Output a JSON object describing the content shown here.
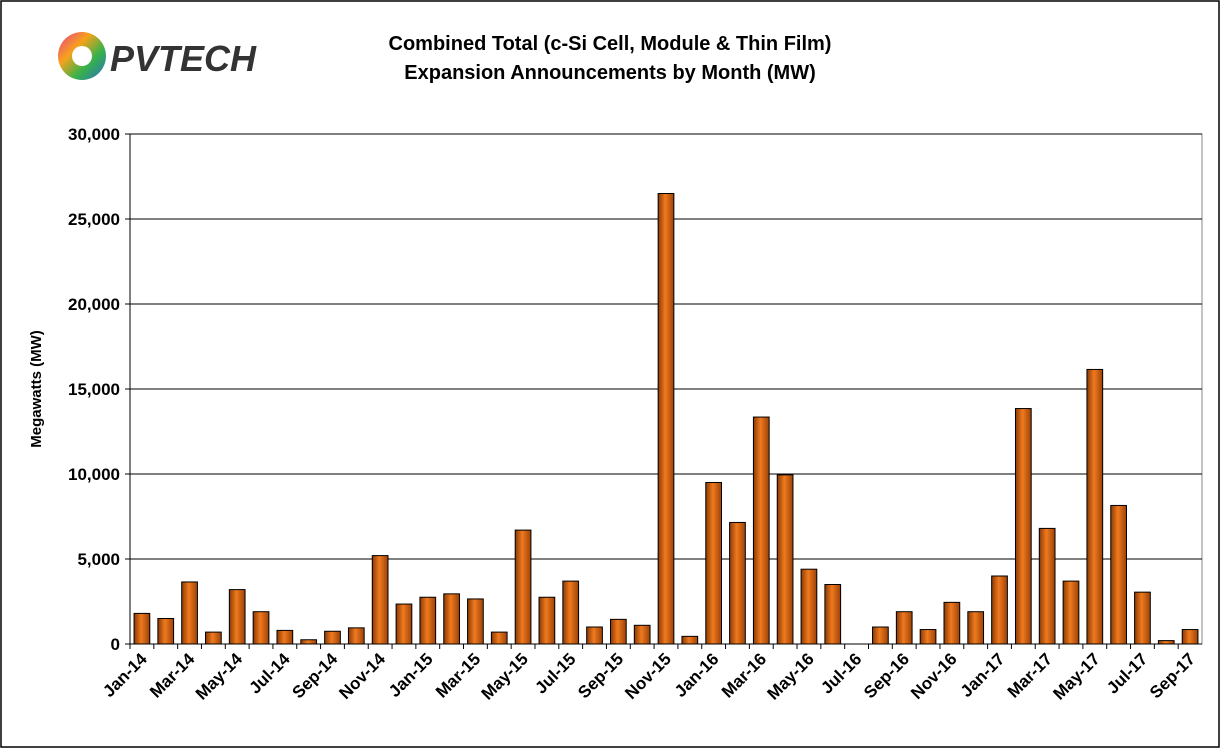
{
  "logo": "PVTECH",
  "chart_data": {
    "type": "bar",
    "title": "Combined Total (c-Si Cell, Module & Thin Film)",
    "subtitle": "Expansion Announcements by Month (MW)",
    "y_label": "Megawatts (MW)",
    "categories": [
      "Jan-14",
      null,
      "Mar-14",
      null,
      "May-14",
      null,
      "Jul-14",
      null,
      "Sep-14",
      null,
      "Nov-14",
      null,
      "Jan-15",
      null,
      "Mar-15",
      null,
      "May-15",
      null,
      "Jul-15",
      null,
      "Sep-15",
      null,
      "Nov-15",
      null,
      "Jan-16",
      null,
      "Mar-16",
      null,
      "May-16",
      null,
      "Jul-16",
      null,
      "Sep-16",
      null,
      "Nov-16",
      null,
      "Jan-17",
      null,
      "Mar-17",
      null,
      "May-17",
      null,
      "Jul-17",
      null,
      "Sep-17"
    ],
    "values": [
      1800,
      1500,
      3650,
      700,
      3200,
      1900,
      800,
      250,
      750,
      950,
      5200,
      2350,
      2750,
      2950,
      2650,
      700,
      6700,
      2750,
      3700,
      1000,
      1450,
      1100,
      26500,
      450,
      9500,
      7150,
      13350,
      9950,
      4400,
      3500,
      0,
      1000,
      1900,
      850,
      2450,
      1900,
      4000,
      13850,
      6800,
      3700,
      16150,
      8150,
      3050,
      200,
      850
    ],
    "color": "#d95f0e",
    "ylim": [
      0,
      30000
    ],
    "yticks": [
      0,
      {
        "value": 5000,
        "label": "5,000"
      },
      {
        "value": 10000,
        "label": "10,000"
      },
      {
        "value": 15000,
        "label": "15,000"
      },
      {
        "value": 20000,
        "label": "20,000"
      },
      {
        "value": 25000,
        "label": "25,000"
      },
      {
        "value": 30000,
        "label": "30,000"
      }
    ],
    "grid": true
  }
}
